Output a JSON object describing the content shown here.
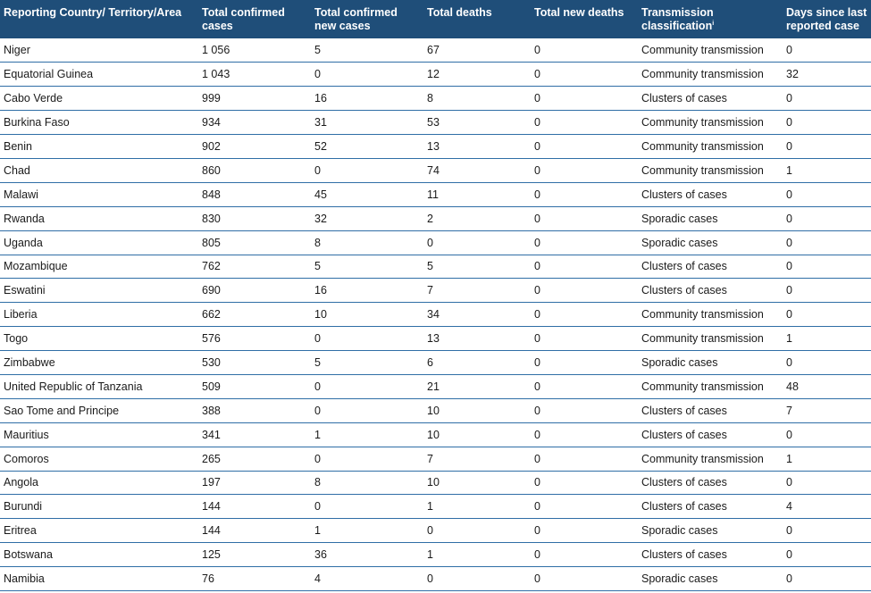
{
  "table": {
    "headers": [
      {
        "key": "country",
        "label": "Reporting Country/ Territory/Area"
      },
      {
        "key": "total_cases",
        "label": "Total confirmed cases"
      },
      {
        "key": "new_cases",
        "label": "Total confirmed new cases"
      },
      {
        "key": "total_deaths",
        "label": "Total deaths"
      },
      {
        "key": "new_deaths",
        "label": "Total new deaths"
      },
      {
        "key": "transmission",
        "label": "Transmission classification",
        "superscript": "i"
      },
      {
        "key": "days_since",
        "label": "Days since last reported case"
      }
    ],
    "rows": [
      [
        "Niger",
        "1 056",
        "5",
        "67",
        "0",
        "Community transmission",
        "0"
      ],
      [
        "Equatorial Guinea",
        "1 043",
        "0",
        "12",
        "0",
        "Community transmission",
        "32"
      ],
      [
        "Cabo Verde",
        "999",
        "16",
        "8",
        "0",
        "Clusters of cases",
        "0"
      ],
      [
        "Burkina Faso",
        "934",
        "31",
        "53",
        "0",
        "Community transmission",
        "0"
      ],
      [
        "Benin",
        "902",
        "52",
        "13",
        "0",
        "Community transmission",
        "0"
      ],
      [
        "Chad",
        "860",
        "0",
        "74",
        "0",
        "Community transmission",
        "1"
      ],
      [
        "Malawi",
        "848",
        "45",
        "11",
        "0",
        "Clusters of cases",
        "0"
      ],
      [
        "Rwanda",
        "830",
        "32",
        "2",
        "0",
        "Sporadic cases",
        "0"
      ],
      [
        "Uganda",
        "805",
        "8",
        "0",
        "0",
        "Sporadic cases",
        "0"
      ],
      [
        "Mozambique",
        "762",
        "5",
        "5",
        "0",
        "Clusters of cases",
        "0"
      ],
      [
        "Eswatini",
        "690",
        "16",
        "7",
        "0",
        "Clusters of cases",
        "0"
      ],
      [
        "Liberia",
        "662",
        "10",
        "34",
        "0",
        "Community transmission",
        "0"
      ],
      [
        "Togo",
        "576",
        "0",
        "13",
        "0",
        "Community transmission",
        "1"
      ],
      [
        "Zimbabwe",
        "530",
        "5",
        "6",
        "0",
        "Sporadic cases",
        "0"
      ],
      [
        "United Republic of Tanzania",
        "509",
        "0",
        "21",
        "0",
        "Community transmission",
        "48"
      ],
      [
        "Sao Tome and Principe",
        "388",
        "0",
        "10",
        "0",
        "Clusters of cases",
        "7"
      ],
      [
        "Mauritius",
        "341",
        "1",
        "10",
        "0",
        "Clusters of cases",
        "0"
      ],
      [
        "Comoros",
        "265",
        "0",
        "7",
        "0",
        "Community transmission",
        "1"
      ],
      [
        "Angola",
        "197",
        "8",
        "10",
        "0",
        "Clusters of cases",
        "0"
      ],
      [
        "Burundi",
        "144",
        "0",
        "1",
        "0",
        "Clusters of cases",
        "4"
      ],
      [
        "Eritrea",
        "144",
        "1",
        "0",
        "0",
        "Sporadic cases",
        "0"
      ],
      [
        "Botswana",
        "125",
        "36",
        "1",
        "0",
        "Clusters of cases",
        "0"
      ],
      [
        "Namibia",
        "76",
        "4",
        "0",
        "0",
        "Sporadic cases",
        "0"
      ]
    ]
  },
  "colors": {
    "header_bg": "#1f4e79",
    "header_text": "#ffffff",
    "row_divider": "#2f6ea6"
  }
}
